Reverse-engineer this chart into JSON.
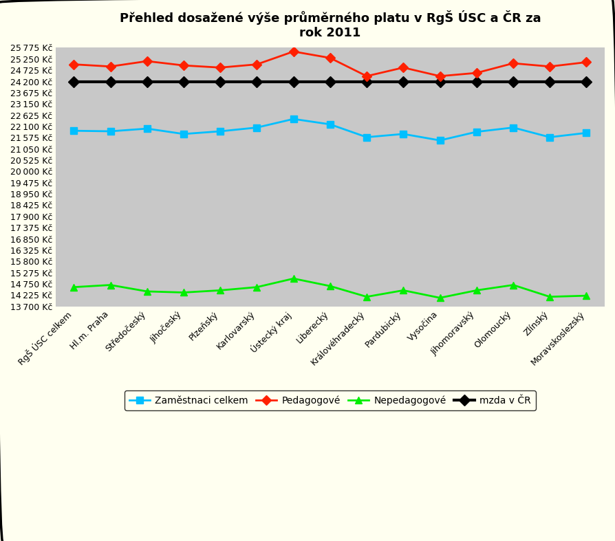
{
  "title": "Přehled dosažené výše průměrného platu v RgŠ ÚSC a ČR za\nrok 2011",
  "categories": [
    "RgŠ ÚSC celkem",
    "Hl.m. Praha",
    "Středočeský",
    "Jihočeský",
    "Plzeňský",
    "Karlovarský",
    "Ústecký kraj",
    "Liberecký",
    "Královéhradecký",
    "Pardubický",
    "Vysočina",
    "Jihomoravský",
    "Olomoucký",
    "Zlínský",
    "Moravskoslezský"
  ],
  "zamestnanci": [
    21900,
    21875,
    22000,
    21750,
    21875,
    22050,
    22450,
    22200,
    21600,
    21750,
    21450,
    21850,
    22050,
    21600,
    21800
  ],
  "pedagogove": [
    25000,
    24900,
    25150,
    24950,
    24850,
    25000,
    25600,
    25300,
    24450,
    24850,
    24450,
    24600,
    25050,
    24900,
    25100
  ],
  "nepedagogove": [
    14600,
    14700,
    14400,
    14350,
    14450,
    14600,
    15000,
    14650,
    14150,
    14450,
    14100,
    14450,
    14700,
    14150,
    14200
  ],
  "mzda_cr": [
    24200,
    24200,
    24200,
    24200,
    24200,
    24200,
    24200,
    24200,
    24200,
    24200,
    24200,
    24200,
    24200,
    24200,
    24200
  ],
  "ymin": 13700,
  "ymax": 25775,
  "ystep": 525,
  "color_zamestnanci": "#00BFFF",
  "color_pedagogove": "#FF2000",
  "color_nepedagogove": "#00EE00",
  "color_mzda": "#000000",
  "color_bg": "#FFFFF0",
  "color_plot_bg": "#C8C8C8",
  "color_border": "#000000",
  "legend_labels": [
    "Zaměstnaci celkem",
    "Pedagogové",
    "Nepedagogové",
    "mzda v ČR"
  ]
}
